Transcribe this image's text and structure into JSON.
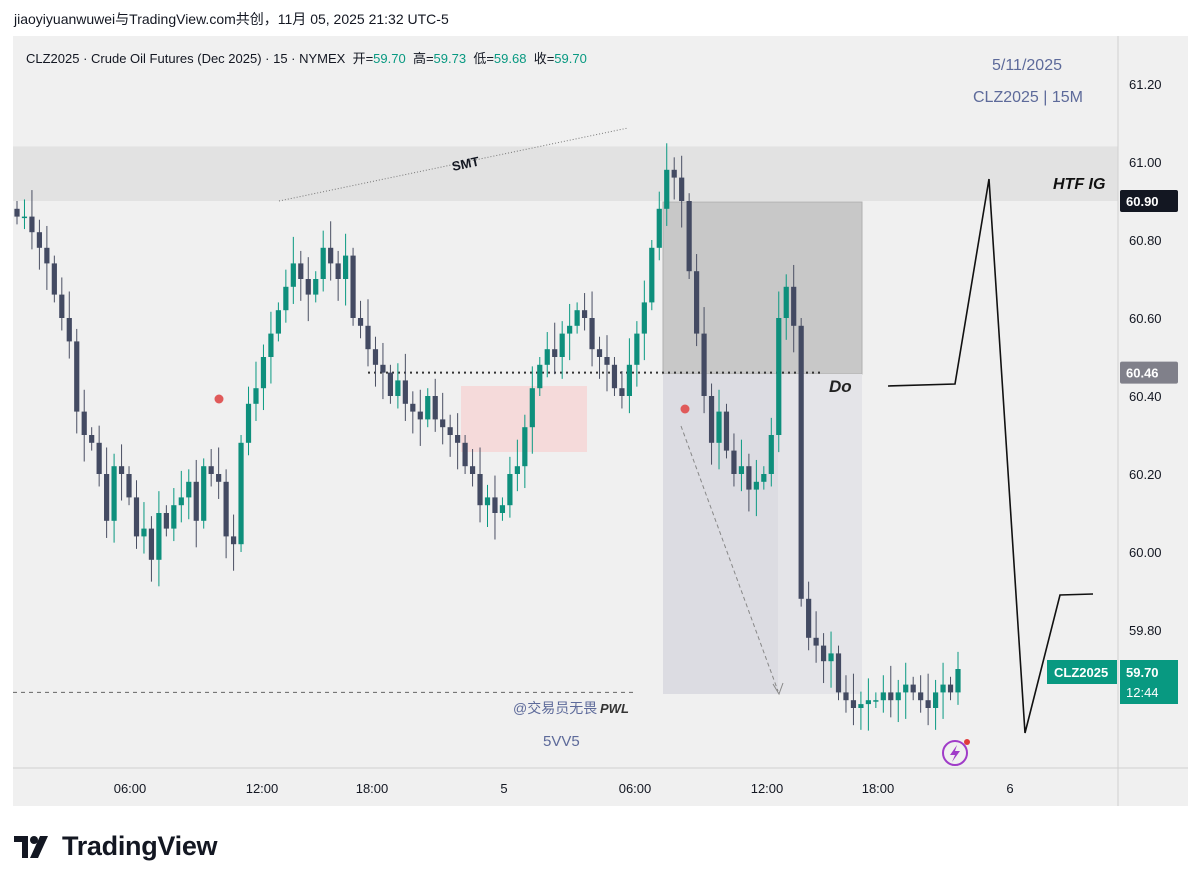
{
  "header": {
    "caption": "jiaoyiyuanwuwei与TradingView.com共创，11月 05, 2025 21:32 UTC-5"
  },
  "legend": {
    "symbol_line": "CLZ2025 · Crude Oil Futures (Dec 2025) · 15 · NYMEX",
    "open_label": "开=",
    "open": "59.70",
    "high_label": "高=",
    "high": "59.73",
    "low_label": "低=",
    "low": "59.68",
    "close_label": "收=",
    "close": "59.70"
  },
  "watermark": {
    "date": "5/11/2025",
    "symbol": "CLZ2025 | 15M"
  },
  "annotations": {
    "smt": "SMT",
    "htf": "HTF IG",
    "do": "Do",
    "pwl": "PWL",
    "author": "@交易员无畏",
    "code": "5VV5"
  },
  "price_tags": {
    "zone_top": "60.90",
    "do_level": "60.46",
    "symbol": "CLZ2025",
    "last": "59.70",
    "countdown": "12:44",
    "pwl": "59.64"
  },
  "brand": {
    "name": "TradingView"
  },
  "colors": {
    "up": "#089981",
    "down": "#4a4f63",
    "up_body": "#0e8f7c",
    "down_body": "#434a62",
    "marker": "#e05a5a",
    "panel": "#f0f0f0"
  },
  "chart_data": {
    "type": "candlestick",
    "symbol": "CLZ2025",
    "interval": "15",
    "x_ticks": [
      "06:00",
      "12:00",
      "18:00",
      "5",
      "06:00",
      "12:00",
      "18:00",
      "6"
    ],
    "y_ticks": [
      59.8,
      60.0,
      60.2,
      60.4,
      60.6,
      60.8,
      61.0,
      61.2
    ],
    "ylim": [
      59.47,
      61.3
    ],
    "levels": {
      "htf_zone_top": 60.9,
      "htf_zone_bottom": 61.04,
      "do": 60.46,
      "pwl": 59.64,
      "last": 59.7
    },
    "close_series": [
      60.86,
      60.86,
      60.82,
      60.78,
      60.74,
      60.66,
      60.6,
      60.54,
      60.36,
      60.3,
      60.28,
      60.2,
      60.08,
      60.22,
      60.2,
      60.14,
      60.04,
      60.06,
      59.98,
      60.1,
      60.06,
      60.12,
      60.14,
      60.18,
      60.08,
      60.22,
      60.2,
      60.18,
      60.04,
      60.02,
      60.28,
      60.38,
      60.42,
      60.5,
      60.56,
      60.62,
      60.68,
      60.74,
      60.7,
      60.66,
      60.7,
      60.78,
      60.74,
      60.7,
      60.76,
      60.6,
      60.58,
      60.52,
      60.48,
      60.46,
      60.4,
      60.44,
      60.38,
      60.36,
      60.34,
      60.4,
      60.34,
      60.32,
      60.3,
      60.28,
      60.22,
      60.2,
      60.12,
      60.14,
      60.1,
      60.12,
      60.2,
      60.22,
      60.32,
      60.42,
      60.48,
      60.52,
      60.5,
      60.56,
      60.58,
      60.62,
      60.6,
      60.52,
      60.5,
      60.48,
      60.42,
      60.4,
      60.48,
      60.56,
      60.64,
      60.78,
      60.88,
      60.98,
      60.96,
      60.9,
      60.72,
      60.56,
      60.4,
      60.28,
      60.36,
      60.26,
      60.2,
      60.22,
      60.16,
      60.18,
      60.2,
      60.3,
      60.6,
      60.68,
      60.58,
      59.88,
      59.78,
      59.76,
      59.72,
      59.74,
      59.64,
      59.62,
      59.6,
      59.61,
      59.62,
      59.62,
      59.64,
      59.62,
      59.64,
      59.66,
      59.64,
      59.62,
      59.6,
      59.64,
      59.66,
      59.64,
      59.7
    ]
  }
}
